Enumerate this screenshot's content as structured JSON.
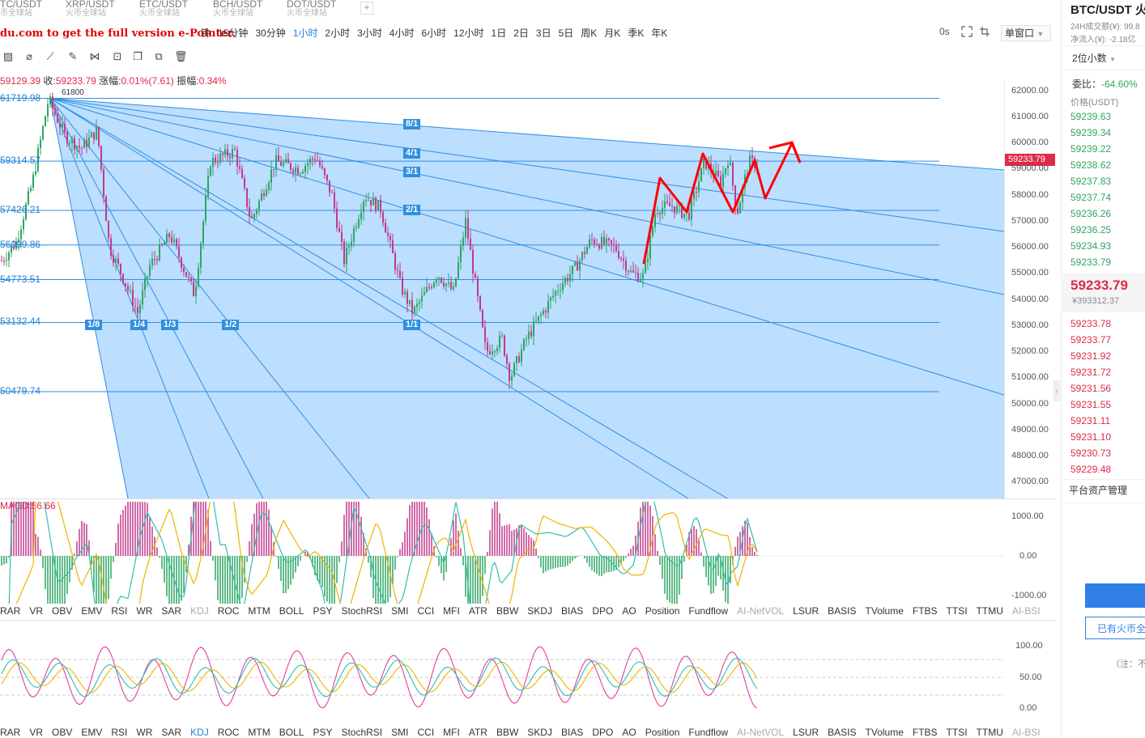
{
  "tabs": [
    {
      "pair": "TC/USDT",
      "sub": "币全球站"
    },
    {
      "pair": "XRP/USDT",
      "sub": "火币全球站"
    },
    {
      "pair": "ETC/USDT",
      "sub": "火币全球站"
    },
    {
      "pair": "BCH/USDT",
      "sub": "火币全球站"
    },
    {
      "pair": "DOT/USDT",
      "sub": "火币全球站"
    }
  ],
  "add_tab": "+",
  "watermark": "du.com to get the full version e-Pointer.",
  "intervals": [
    "钟",
    "15分钟",
    "30分钟",
    "1小时",
    "2小时",
    "3小时",
    "4小时",
    "6小时",
    "12小时",
    "1日",
    "2日",
    "3日",
    "5日",
    "周K",
    "月K",
    "季K",
    "年K"
  ],
  "active_interval": "1小时",
  "toolbar": {
    "latency": "0s",
    "window_mode": "单窗口"
  },
  "ohlc": {
    "low_value": "59129.39",
    "close_label": "收:",
    "close": "59233.79",
    "change_label": "涨幅:",
    "change": "0.01%(7.61)",
    "amp_label": "振幅:",
    "amp": "0.34%"
  },
  "levels": [
    "61719.98",
    "59314.57",
    "57426.21",
    "56099.86",
    "54773.51",
    "53132.44",
    "50479.74"
  ],
  "top_marker": "61800",
  "price_axis": [
    "62000.00",
    "61000.00",
    "60000.00",
    "59000.00",
    "58000.00",
    "57000.00",
    "56000.00",
    "55000.00",
    "54000.00",
    "53000.00",
    "52000.00",
    "51000.00",
    "50000.00",
    "49000.00",
    "48000.00",
    "47000.00"
  ],
  "current_price_tag": "59233.79",
  "fan_labels": [
    "8/1",
    "4/1",
    "3/1",
    "2/1",
    "1/1",
    "1/2",
    "1/3",
    "1/4",
    "1/8"
  ],
  "macd": {
    "label": "MACD:56.66",
    "axis": [
      "1000.00",
      "0.00",
      "-1000.00"
    ]
  },
  "kdj": {
    "axis": [
      "100.00",
      "50.00",
      "0.00"
    ]
  },
  "indicators": [
    "RAR",
    "VR",
    "OBV",
    "EMV",
    "RSI",
    "WR",
    "SAR",
    "KDJ",
    "ROC",
    "MTM",
    "BOLL",
    "PSY",
    "StochRSI",
    "SMI",
    "CCI",
    "MFI",
    "ATR",
    "BBW",
    "SKDJ",
    "BIAS",
    "DPO",
    "AO",
    "Position",
    "Fundflow",
    "AI-NetVOL",
    "LSUR",
    "BASIS",
    "TVolume",
    "FTBS",
    "TTSI",
    "TTMU",
    "AI-BSI"
  ],
  "right_panel": {
    "title": "BTC/USDT 火",
    "volume": "24H成交额(¥): 99.8",
    "netflow": "净流入(¥): -2.18亿",
    "precision": "2位小数",
    "ratio_label": "委比：",
    "ratio": "-64.60%",
    "price_header": "价格(USDT)",
    "bids": [
      "59239.63",
      "59239.34",
      "59239.22",
      "59238.62",
      "59237.83",
      "59237.74",
      "59236.26",
      "59236.25",
      "59234.93",
      "59233.79"
    ],
    "last": "59233.79",
    "last_cny": "¥393312.37",
    "asks": [
      "59233.78",
      "59233.77",
      "59231.92",
      "59231.72",
      "59231.56",
      "59231.55",
      "59231.11",
      "59231.10",
      "59230.73",
      "59229.48"
    ],
    "asset_mgmt": "平台资产管理",
    "has_account": "已有火币全",
    "note": "（注：不"
  },
  "colors": {
    "fan_fill": "#b8dcff",
    "fan_line": "#2f8fe0",
    "up": "#2ea562",
    "down": "#c13a8a",
    "macd_dif": "#2ebfae",
    "macd_dea": "#f0b400",
    "kdj_j": "#e040a0",
    "annotation": "#ff0000"
  }
}
